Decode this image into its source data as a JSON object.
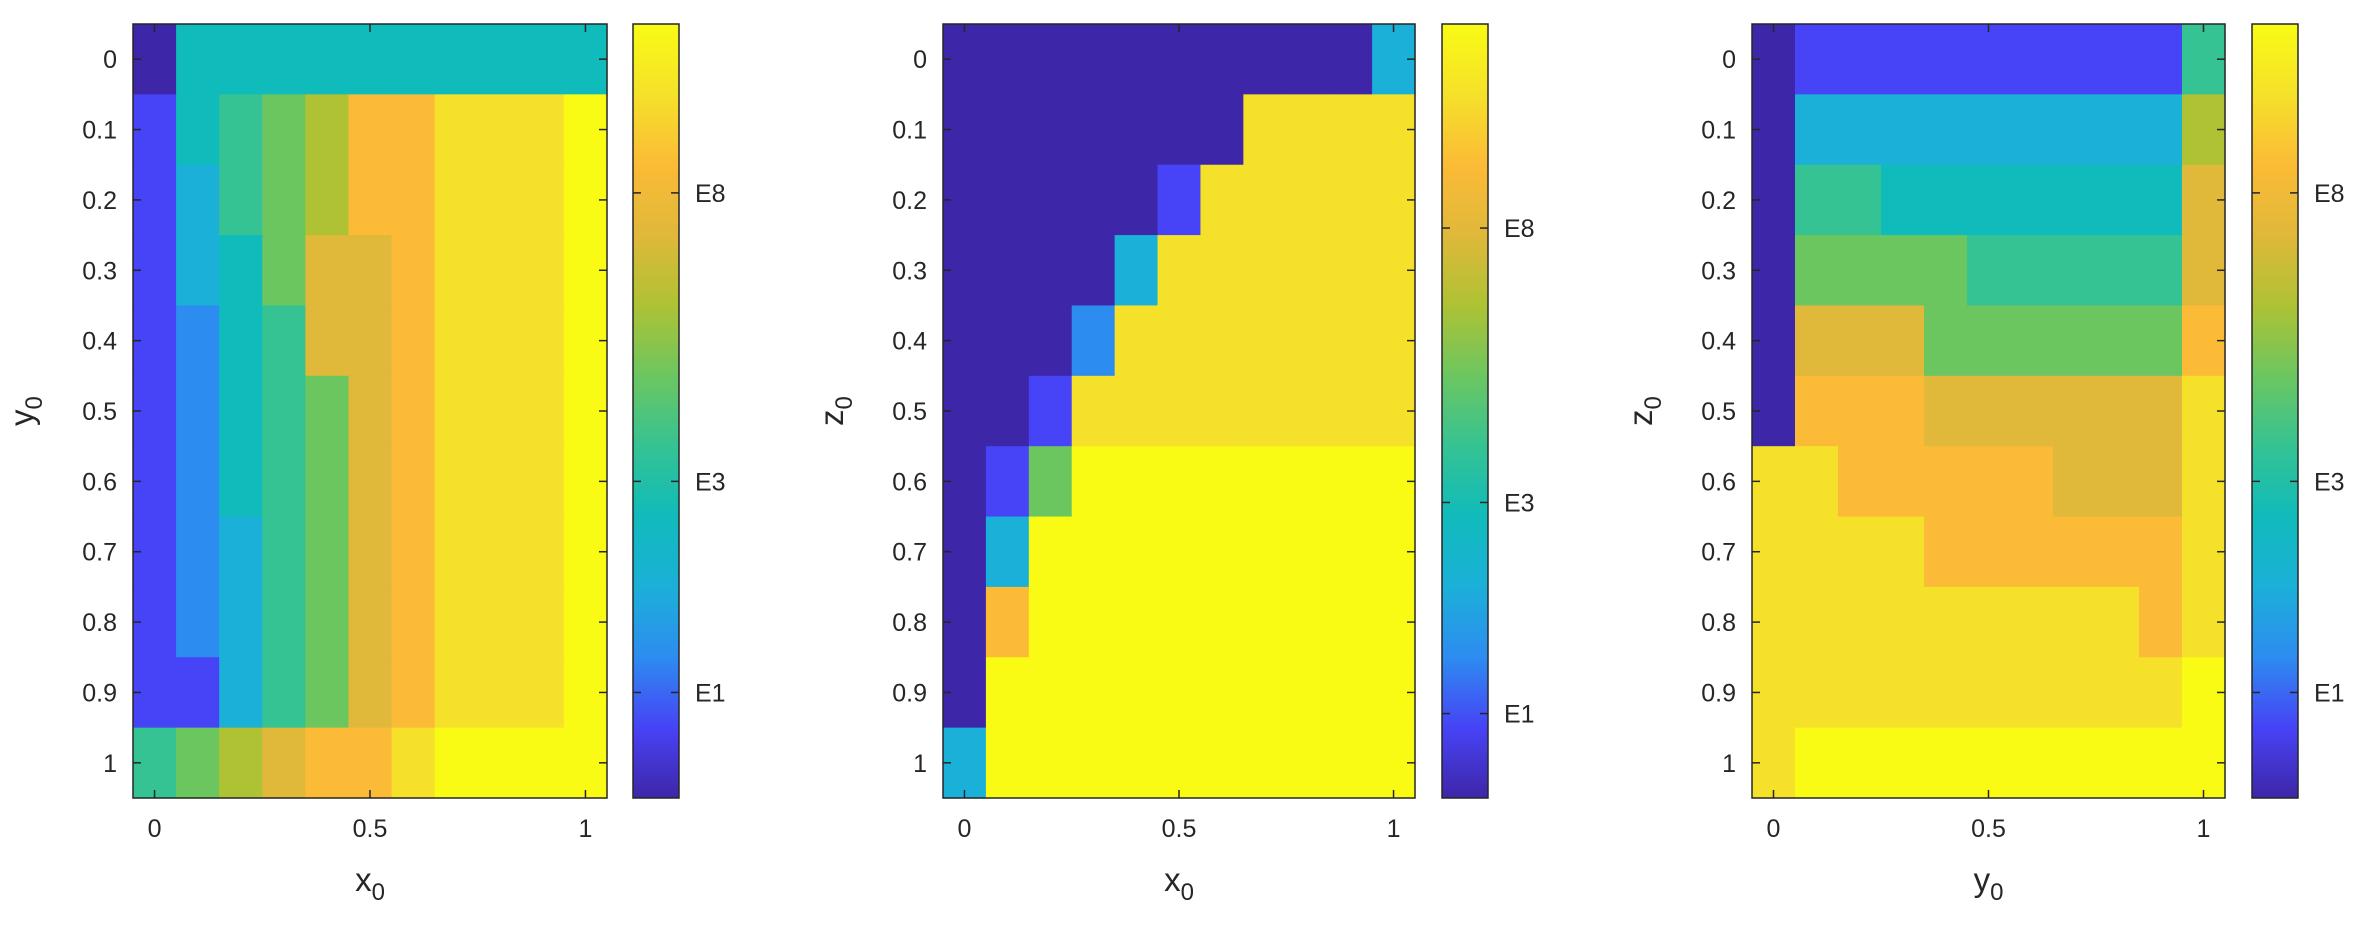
{
  "figure": {
    "colormap": [
      "#3e26a8",
      "#4743f6",
      "#2d8cf0",
      "#1bb0d8",
      "#10bbbb",
      "#35c393",
      "#6cc660",
      "#aec234",
      "#e0b83a",
      "#fbbb36",
      "#f5e12a",
      "#f9fb14"
    ]
  },
  "chart_data": [
    {
      "type": "heatmap",
      "title": "",
      "xlabel": "x",
      "xlabel_subscript": "0",
      "ylabel": "y",
      "ylabel_subscript": "0",
      "x": [
        0,
        0.1,
        0.2,
        0.3,
        0.4,
        0.5,
        0.6,
        0.7,
        0.8,
        0.9,
        1
      ],
      "y": [
        0,
        0.1,
        0.2,
        0.3,
        0.4,
        0.5,
        0.6,
        0.7,
        0.8,
        0.9,
        1
      ],
      "xticks": [
        {
          "v": 0,
          "label": "0"
        },
        {
          "v": 0.5,
          "label": "0.5"
        },
        {
          "v": 1,
          "label": "1"
        }
      ],
      "yticks": [
        {
          "v": 0,
          "label": "0"
        },
        {
          "v": 0.1,
          "label": "0.1"
        },
        {
          "v": 0.2,
          "label": "0.2"
        },
        {
          "v": 0.3,
          "label": "0.3"
        },
        {
          "v": 0.4,
          "label": "0.4"
        },
        {
          "v": 0.5,
          "label": "0.5"
        },
        {
          "v": 0.6,
          "label": "0.6"
        },
        {
          "v": 0.7,
          "label": "0.7"
        },
        {
          "v": 0.8,
          "label": "0.8"
        },
        {
          "v": 0.9,
          "label": "0.9"
        },
        {
          "v": 1,
          "label": "1"
        }
      ],
      "y_reversed": true,
      "color_levels": [
        [
          0,
          4,
          4,
          4,
          4,
          4,
          4,
          4,
          4,
          4,
          4
        ],
        [
          1,
          4,
          5,
          6,
          7,
          9,
          9,
          10,
          10,
          10,
          11
        ],
        [
          1,
          3,
          5,
          6,
          7,
          9,
          9,
          10,
          10,
          10,
          11
        ],
        [
          1,
          3,
          4,
          6,
          8,
          8,
          9,
          10,
          10,
          10,
          11
        ],
        [
          1,
          2,
          4,
          5,
          8,
          8,
          9,
          10,
          10,
          10,
          11
        ],
        [
          1,
          2,
          4,
          5,
          6,
          8,
          9,
          10,
          10,
          10,
          11
        ],
        [
          1,
          2,
          4,
          5,
          6,
          8,
          9,
          10,
          10,
          10,
          11
        ],
        [
          1,
          2,
          3,
          5,
          6,
          8,
          9,
          10,
          10,
          10,
          11
        ],
        [
          1,
          2,
          3,
          5,
          6,
          8,
          9,
          10,
          10,
          10,
          11
        ],
        [
          1,
          1,
          3,
          5,
          6,
          8,
          9,
          10,
          10,
          10,
          11
        ],
        [
          5,
          6,
          7,
          8,
          9,
          9,
          10,
          11,
          11,
          11,
          11
        ]
      ],
      "colorbar": {
        "ticks": [
          {
            "label": "E8",
            "level": 8.6
          },
          {
            "label": "E3",
            "level": 4.5
          },
          {
            "label": "E1",
            "level": 1.5
          }
        ]
      }
    },
    {
      "type": "heatmap",
      "title": "",
      "xlabel": "x",
      "xlabel_subscript": "0",
      "ylabel": "z",
      "ylabel_subscript": "0",
      "x": [
        0,
        0.1,
        0.2,
        0.3,
        0.4,
        0.5,
        0.6,
        0.7,
        0.8,
        0.9,
        1
      ],
      "y": [
        0,
        0.1,
        0.2,
        0.3,
        0.4,
        0.5,
        0.6,
        0.7,
        0.8,
        0.9,
        1
      ],
      "xticks": [
        {
          "v": 0,
          "label": "0"
        },
        {
          "v": 0.5,
          "label": "0.5"
        },
        {
          "v": 1,
          "label": "1"
        }
      ],
      "yticks": [
        {
          "v": 0,
          "label": "0"
        },
        {
          "v": 0.1,
          "label": "0.1"
        },
        {
          "v": 0.2,
          "label": "0.2"
        },
        {
          "v": 0.3,
          "label": "0.3"
        },
        {
          "v": 0.4,
          "label": "0.4"
        },
        {
          "v": 0.5,
          "label": "0.5"
        },
        {
          "v": 0.6,
          "label": "0.6"
        },
        {
          "v": 0.7,
          "label": "0.7"
        },
        {
          "v": 0.8,
          "label": "0.8"
        },
        {
          "v": 0.9,
          "label": "0.9"
        },
        {
          "v": 1,
          "label": "1"
        }
      ],
      "y_reversed": true,
      "color_levels": [
        [
          0,
          0,
          0,
          0,
          0,
          0,
          0,
          0,
          0,
          0,
          3
        ],
        [
          0,
          0,
          0,
          0,
          0,
          0,
          0,
          10,
          10,
          10,
          10
        ],
        [
          0,
          0,
          0,
          0,
          0,
          1,
          10,
          10,
          10,
          10,
          10
        ],
        [
          0,
          0,
          0,
          0,
          3,
          10,
          10,
          10,
          10,
          10,
          10
        ],
        [
          0,
          0,
          0,
          2,
          10,
          10,
          10,
          10,
          10,
          10,
          10
        ],
        [
          0,
          0,
          1,
          10,
          10,
          10,
          10,
          10,
          10,
          10,
          10
        ],
        [
          0,
          1,
          6,
          11,
          11,
          11,
          11,
          11,
          11,
          11,
          11
        ],
        [
          0,
          3,
          11,
          11,
          11,
          11,
          11,
          11,
          11,
          11,
          11
        ],
        [
          0,
          9,
          11,
          11,
          11,
          11,
          11,
          11,
          11,
          11,
          11
        ],
        [
          0,
          11,
          11,
          11,
          11,
          11,
          11,
          11,
          11,
          11,
          11
        ],
        [
          3,
          11,
          11,
          11,
          11,
          11,
          11,
          11,
          11,
          11,
          11
        ]
      ],
      "colorbar": {
        "ticks": [
          {
            "label": "E8",
            "level": 8.1
          },
          {
            "label": "E3",
            "level": 4.2
          },
          {
            "label": "E1",
            "level": 1.2
          }
        ]
      }
    },
    {
      "type": "heatmap",
      "title": "",
      "xlabel": "y",
      "xlabel_subscript": "0",
      "ylabel": "z",
      "ylabel_subscript": "0",
      "x": [
        0,
        0.1,
        0.2,
        0.3,
        0.4,
        0.5,
        0.6,
        0.7,
        0.8,
        0.9,
        1
      ],
      "y": [
        0,
        0.1,
        0.2,
        0.3,
        0.4,
        0.5,
        0.6,
        0.7,
        0.8,
        0.9,
        1
      ],
      "xticks": [
        {
          "v": 0,
          "label": "0"
        },
        {
          "v": 0.5,
          "label": "0.5"
        },
        {
          "v": 1,
          "label": "1"
        }
      ],
      "yticks": [
        {
          "v": 0,
          "label": "0"
        },
        {
          "v": 0.1,
          "label": "0.1"
        },
        {
          "v": 0.2,
          "label": "0.2"
        },
        {
          "v": 0.3,
          "label": "0.3"
        },
        {
          "v": 0.4,
          "label": "0.4"
        },
        {
          "v": 0.5,
          "label": "0.5"
        },
        {
          "v": 0.6,
          "label": "0.6"
        },
        {
          "v": 0.7,
          "label": "0.7"
        },
        {
          "v": 0.8,
          "label": "0.8"
        },
        {
          "v": 0.9,
          "label": "0.9"
        },
        {
          "v": 1,
          "label": "1"
        }
      ],
      "y_reversed": true,
      "color_levels": [
        [
          0,
          1,
          1,
          1,
          1,
          1,
          1,
          1,
          1,
          1,
          5
        ],
        [
          0,
          3,
          3,
          3,
          3,
          3,
          3,
          3,
          3,
          3,
          7
        ],
        [
          0,
          5,
          5,
          4,
          4,
          4,
          4,
          4,
          4,
          4,
          8
        ],
        [
          0,
          6,
          6,
          6,
          6,
          5,
          5,
          5,
          5,
          5,
          8
        ],
        [
          0,
          8,
          8,
          8,
          6,
          6,
          6,
          6,
          6,
          6,
          9
        ],
        [
          0,
          9,
          9,
          9,
          8,
          8,
          8,
          8,
          8,
          8,
          10
        ],
        [
          10,
          10,
          9,
          9,
          9,
          9,
          9,
          8,
          8,
          8,
          10
        ],
        [
          10,
          10,
          10,
          10,
          9,
          9,
          9,
          9,
          9,
          9,
          10
        ],
        [
          10,
          10,
          10,
          10,
          10,
          10,
          10,
          10,
          10,
          9,
          10
        ],
        [
          10,
          10,
          10,
          10,
          10,
          10,
          10,
          10,
          10,
          10,
          11
        ],
        [
          10,
          11,
          11,
          11,
          11,
          11,
          11,
          11,
          11,
          11,
          11
        ]
      ],
      "colorbar": {
        "ticks": [
          {
            "label": "E8",
            "level": 8.6
          },
          {
            "label": "E3",
            "level": 4.5
          },
          {
            "label": "E1",
            "level": 1.5
          }
        ]
      }
    }
  ]
}
